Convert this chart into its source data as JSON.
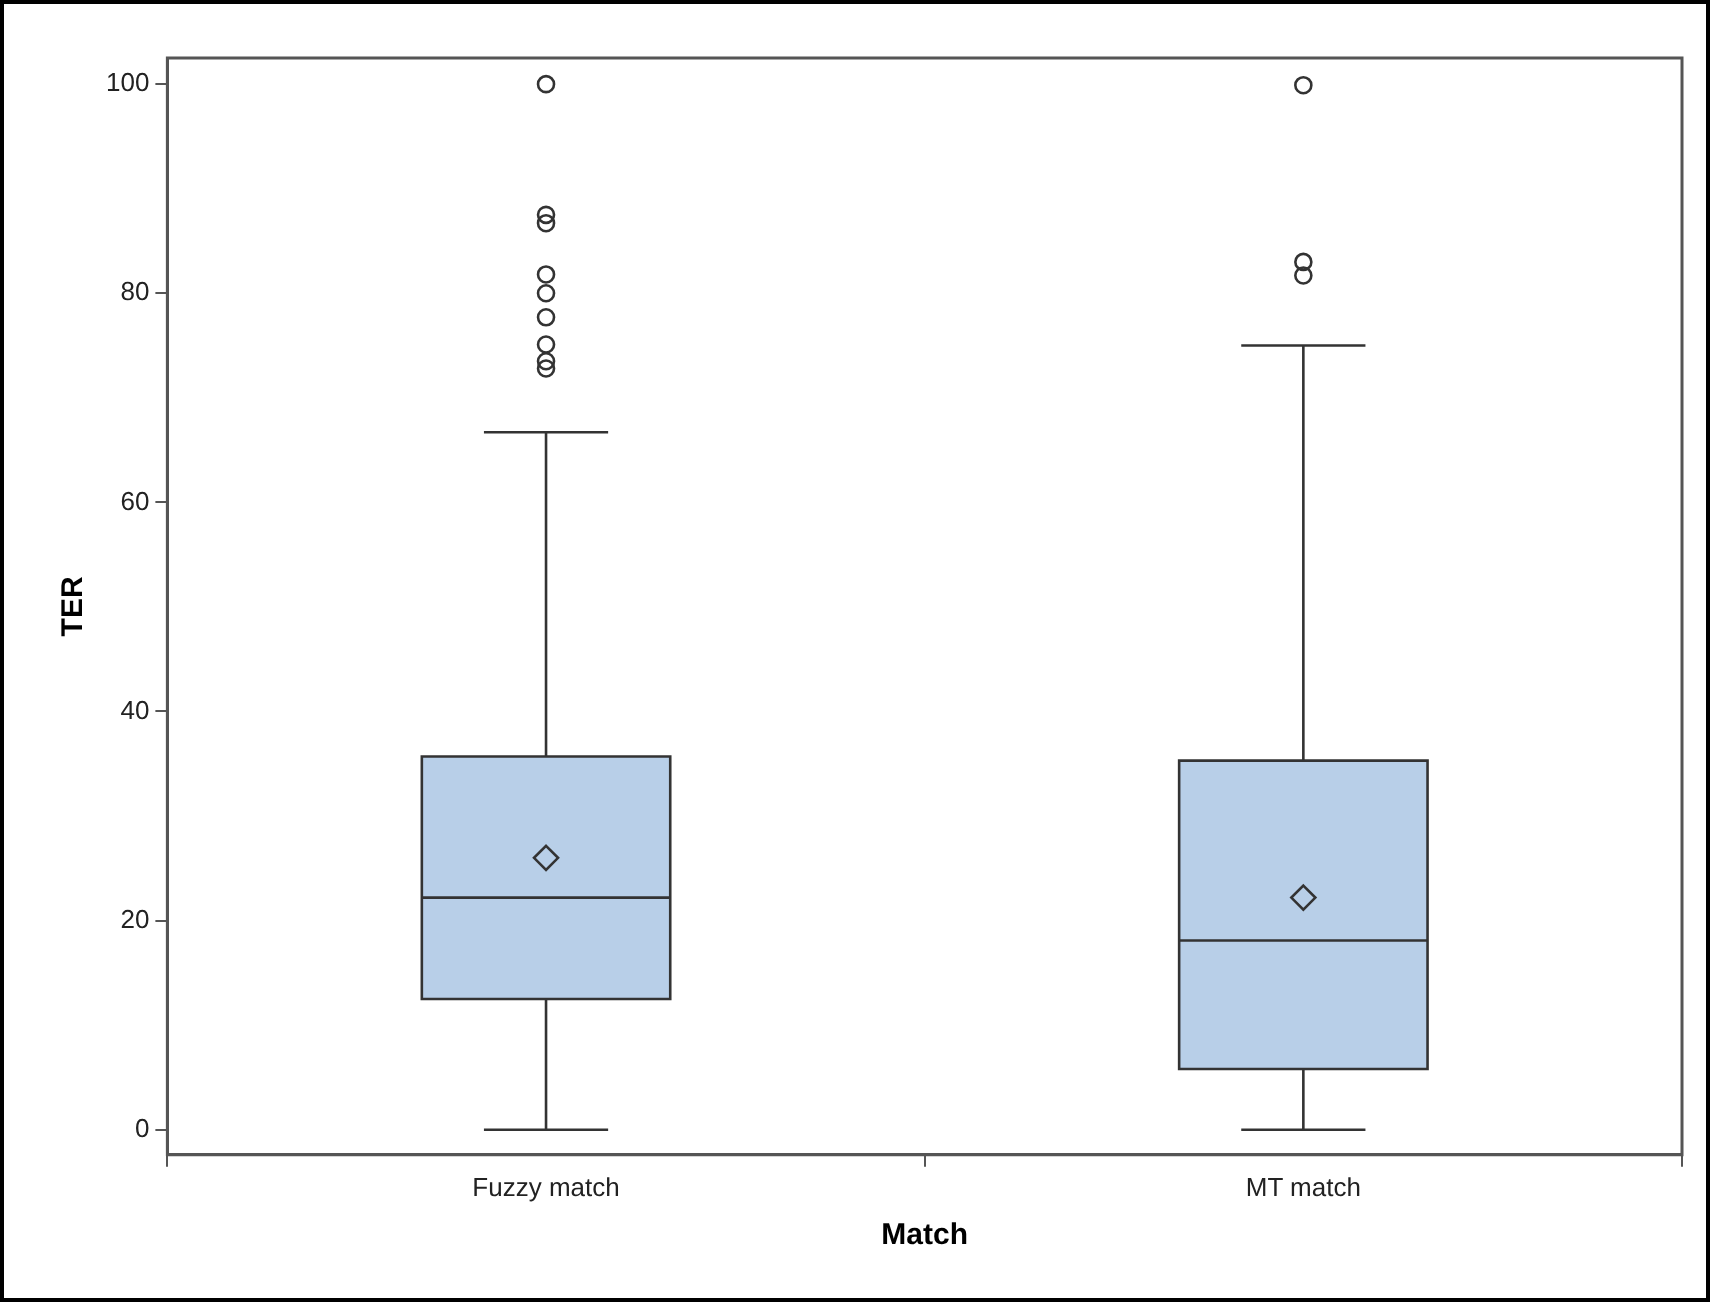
{
  "chart_data": {
    "type": "box",
    "xlabel": "Match",
    "ylabel": "TER",
    "categories": [
      "Fuzzy match",
      "MT match"
    ],
    "color": "#b8cfe8",
    "boxes": [
      {
        "low": 0,
        "q1": 12.5,
        "median": 22.2,
        "q3": 35.7,
        "high": 66.7,
        "mean": 26.0,
        "outliers": [
          100,
          87.5,
          86.7,
          81.8,
          80.0,
          77.7,
          75.1,
          73.5,
          72.8
        ]
      },
      {
        "low": 0,
        "q1": 5.8,
        "median": 18.1,
        "q3": 35.3,
        "high": 75.0,
        "mean": 22.2,
        "outliers": [
          99.9,
          83.0,
          81.7
        ]
      }
    ],
    "ylim": [
      -2.4,
      102.5
    ],
    "yticks": [
      0,
      20,
      40,
      60,
      80,
      100
    ]
  }
}
